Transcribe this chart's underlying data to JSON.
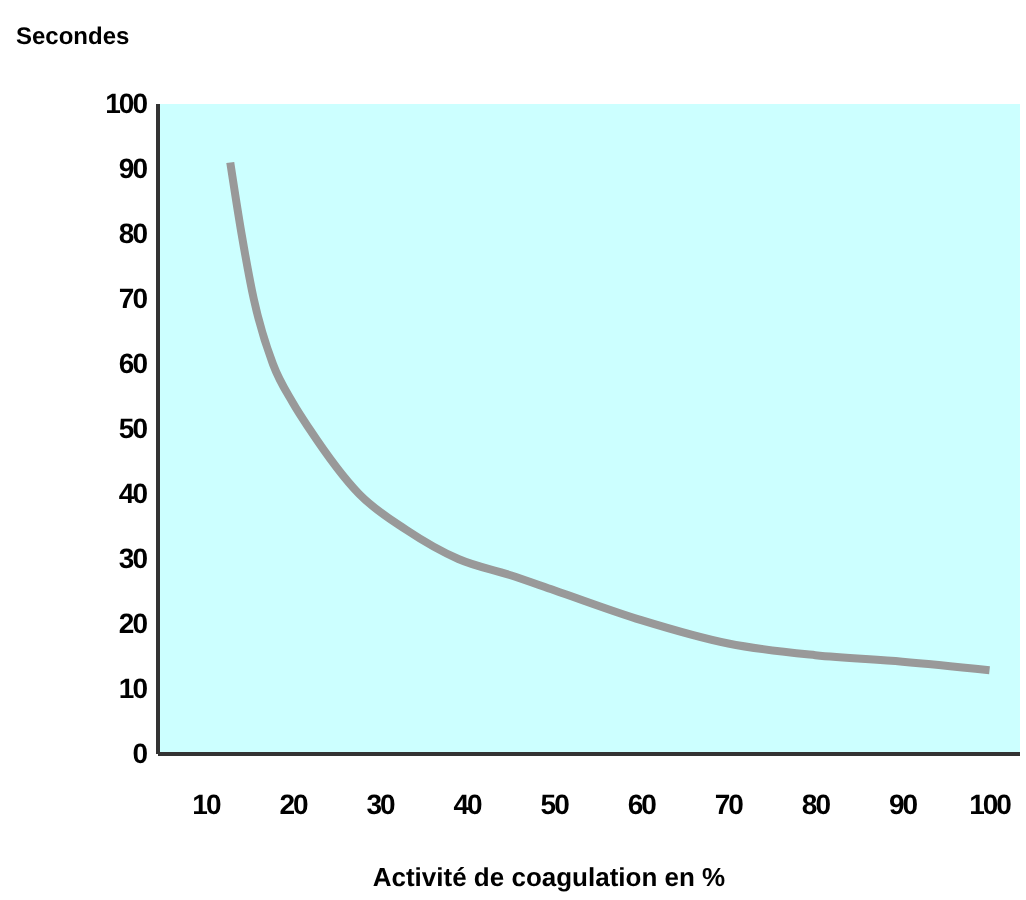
{
  "chart_data": {
    "type": "line",
    "xlabel": "Activité de coagulation en %",
    "ylabel": "Secondes",
    "x": [
      12.8,
      14.1,
      15.5,
      17.7,
      20,
      21.9,
      27.6,
      33,
      39,
      45,
      50,
      60,
      70,
      80,
      90,
      100
    ],
    "series": [
      {
        "color": "#999999",
        "values": [
          91,
          80,
          70,
          60,
          54,
          50,
          40,
          34.5,
          30,
          27.5,
          25.2,
          20.6,
          17,
          15.2,
          14.2,
          12.9
        ]
      }
    ],
    "xlim": [
      4.5,
      103.5
    ],
    "xticks": [
      10,
      20,
      30,
      40,
      50,
      60,
      70,
      80,
      90,
      100
    ],
    "ylim": [
      0,
      100
    ],
    "yticks": [
      0,
      10,
      20,
      30,
      40,
      50,
      60,
      70,
      80,
      90,
      100
    ],
    "grid": false,
    "marker": "none",
    "line_style": "solid"
  }
}
